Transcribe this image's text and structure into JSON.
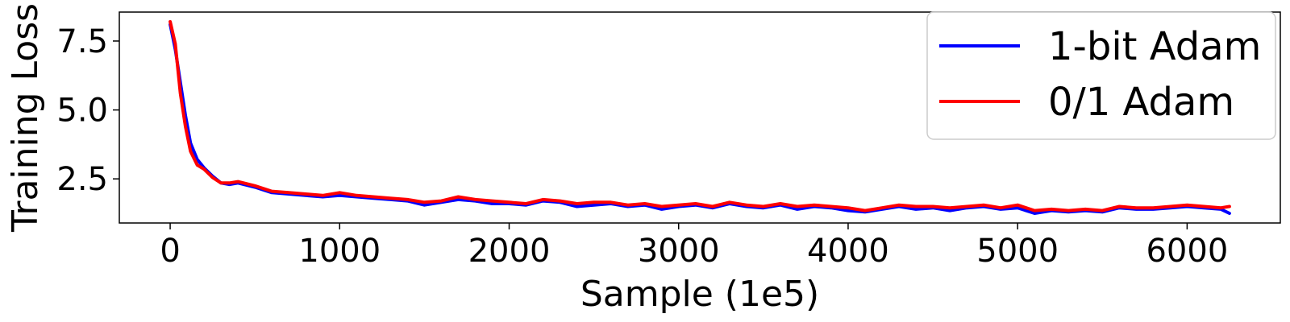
{
  "chart_data": {
    "type": "line",
    "title": "",
    "xlabel": "Sample (1e5)",
    "ylabel": "Training Loss",
    "xlim": [
      -300,
      6550
    ],
    "ylim": [
      0.9,
      8.55
    ],
    "xticks": [
      0,
      1000,
      2000,
      3000,
      4000,
      5000,
      6000
    ],
    "xtick_labels": [
      "0",
      "1000",
      "2000",
      "3000",
      "4000",
      "5000",
      "6000"
    ],
    "yticks": [
      2.5,
      5.0,
      7.5
    ],
    "ytick_labels": [
      "2.5",
      "5.0",
      "7.5"
    ],
    "grid": false,
    "legend": {
      "position": "top-right"
    },
    "series": [
      {
        "name": "1-bit Adam",
        "color": "#0000ff",
        "x": [
          0,
          30,
          60,
          90,
          120,
          160,
          200,
          250,
          300,
          350,
          400,
          500,
          600,
          700,
          800,
          900,
          1000,
          1100,
          1200,
          1300,
          1400,
          1500,
          1600,
          1700,
          1800,
          1900,
          2000,
          2100,
          2200,
          2300,
          2400,
          2500,
          2600,
          2700,
          2800,
          2900,
          3000,
          3100,
          3200,
          3300,
          3400,
          3500,
          3600,
          3700,
          3800,
          3900,
          4000,
          4100,
          4200,
          4300,
          4400,
          4500,
          4600,
          4700,
          4800,
          4900,
          5000,
          5100,
          5200,
          5300,
          5400,
          5500,
          5600,
          5700,
          5800,
          5900,
          6000,
          6100,
          6200,
          6250
        ],
        "y": [
          8.1,
          7.2,
          6.0,
          4.8,
          3.8,
          3.2,
          2.9,
          2.6,
          2.35,
          2.3,
          2.35,
          2.2,
          2.0,
          1.95,
          1.9,
          1.85,
          1.9,
          1.85,
          1.8,
          1.75,
          1.7,
          1.55,
          1.65,
          1.75,
          1.7,
          1.6,
          1.6,
          1.55,
          1.7,
          1.65,
          1.5,
          1.55,
          1.6,
          1.5,
          1.55,
          1.4,
          1.5,
          1.55,
          1.45,
          1.6,
          1.5,
          1.45,
          1.55,
          1.4,
          1.5,
          1.45,
          1.35,
          1.3,
          1.4,
          1.5,
          1.4,
          1.45,
          1.35,
          1.45,
          1.5,
          1.4,
          1.45,
          1.25,
          1.35,
          1.3,
          1.35,
          1.3,
          1.45,
          1.4,
          1.4,
          1.45,
          1.5,
          1.45,
          1.4,
          1.25
        ]
      },
      {
        "name": "0/1 Adam",
        "color": "#ff0000",
        "x": [
          0,
          30,
          60,
          90,
          120,
          160,
          200,
          250,
          300,
          350,
          400,
          500,
          600,
          700,
          800,
          900,
          1000,
          1100,
          1200,
          1300,
          1400,
          1500,
          1600,
          1700,
          1800,
          1900,
          2000,
          2100,
          2200,
          2300,
          2400,
          2500,
          2600,
          2700,
          2800,
          2900,
          3000,
          3100,
          3200,
          3300,
          3400,
          3500,
          3600,
          3700,
          3800,
          3900,
          4000,
          4100,
          4200,
          4300,
          4400,
          4500,
          4600,
          4700,
          4800,
          4900,
          5000,
          5100,
          5200,
          5300,
          5400,
          5500,
          5600,
          5700,
          5800,
          5900,
          6000,
          6100,
          6200,
          6250
        ],
        "y": [
          8.2,
          7.4,
          5.6,
          4.4,
          3.5,
          3.0,
          2.85,
          2.55,
          2.35,
          2.35,
          2.4,
          2.25,
          2.05,
          2.0,
          1.95,
          1.9,
          2.0,
          1.9,
          1.85,
          1.8,
          1.75,
          1.65,
          1.7,
          1.85,
          1.75,
          1.7,
          1.65,
          1.6,
          1.75,
          1.7,
          1.6,
          1.65,
          1.65,
          1.55,
          1.6,
          1.5,
          1.55,
          1.6,
          1.5,
          1.65,
          1.55,
          1.5,
          1.6,
          1.5,
          1.55,
          1.5,
          1.45,
          1.35,
          1.45,
          1.55,
          1.5,
          1.5,
          1.45,
          1.5,
          1.55,
          1.45,
          1.55,
          1.35,
          1.4,
          1.35,
          1.4,
          1.35,
          1.5,
          1.45,
          1.45,
          1.5,
          1.55,
          1.5,
          1.45,
          1.5
        ]
      }
    ]
  }
}
